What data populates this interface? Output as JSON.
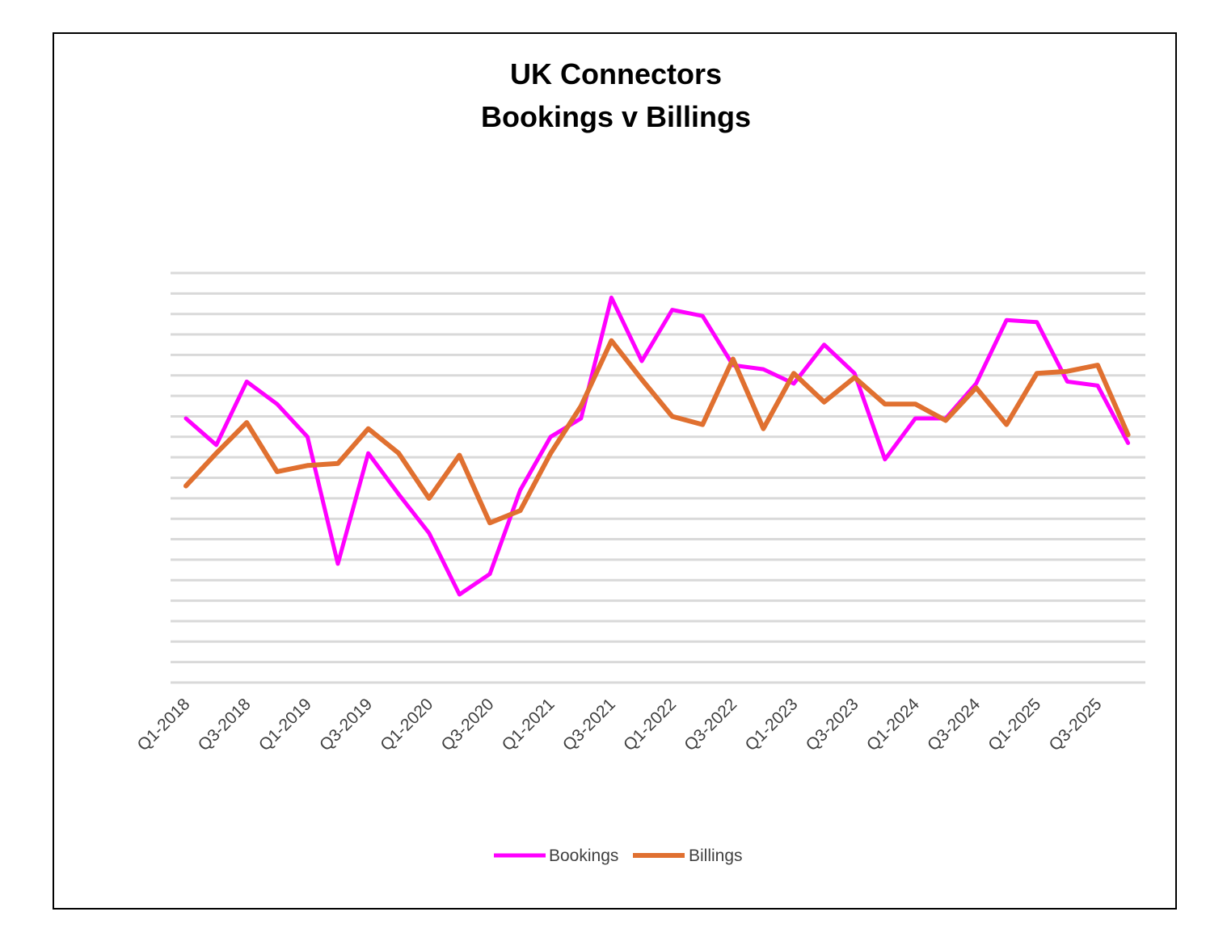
{
  "chart_data": {
    "type": "line",
    "title": [
      "UK Connectors",
      "Bookings v Billings"
    ],
    "xlabel": "",
    "ylabel": "",
    "x": [
      "Q1-2018",
      "Q2-2018",
      "Q3-2018",
      "Q4-2018",
      "Q1-2019",
      "Q2-2019",
      "Q3-2019",
      "Q4-2019",
      "Q1-2020",
      "Q2-2020",
      "Q3-2020",
      "Q4-2020",
      "Q1-2021",
      "Q2-2021",
      "Q3-2021",
      "Q4-2021",
      "Q1-2022",
      "Q2-2022",
      "Q3-2022",
      "Q4-2022",
      "Q1-2023",
      "Q2-2023",
      "Q3-2023",
      "Q4-2023",
      "Q1-2024",
      "Q2-2024",
      "Q3-2024",
      "Q4-2024",
      "Q1-2025",
      "Q2-2025",
      "Q3-2025",
      "Q4-2025"
    ],
    "tick_labels": [
      "Q1-2018",
      "Q3-2018",
      "Q1-2019",
      "Q3-2019",
      "Q1-2020",
      "Q3-2020",
      "Q1-2021",
      "Q3-2021",
      "Q1-2022",
      "Q3-2022",
      "Q1-2023",
      "Q3-2023",
      "Q1-2024",
      "Q3-2024",
      "Q1-2025",
      "Q3-2025"
    ],
    "y_axis_labels_shown": false,
    "ylim": [
      0,
      20
    ],
    "gridlines": 21,
    "grid": true,
    "legend_position": "bottom",
    "series": [
      {
        "name": "Bookings",
        "color": "#ff00ff",
        "values": [
          12.9,
          11.6,
          14.7,
          13.6,
          12.0,
          5.8,
          11.2,
          9.2,
          7.3,
          4.3,
          5.3,
          9.4,
          12.0,
          12.9,
          18.8,
          15.7,
          18.2,
          17.9,
          15.5,
          15.3,
          14.6,
          16.5,
          15.1,
          10.9,
          12.9,
          12.9,
          14.6,
          17.7,
          17.6,
          14.7,
          14.5,
          11.7
        ]
      },
      {
        "name": "Billings",
        "color": "#e07030",
        "values": [
          9.6,
          11.2,
          12.7,
          10.3,
          10.6,
          10.7,
          12.4,
          11.2,
          9.0,
          11.1,
          7.8,
          8.4,
          11.2,
          13.5,
          16.7,
          14.8,
          13.0,
          12.6,
          15.8,
          12.4,
          15.1,
          13.7,
          14.9,
          13.6,
          13.6,
          12.8,
          14.4,
          12.6,
          15.1,
          15.2,
          15.5,
          12.1
        ]
      }
    ]
  }
}
